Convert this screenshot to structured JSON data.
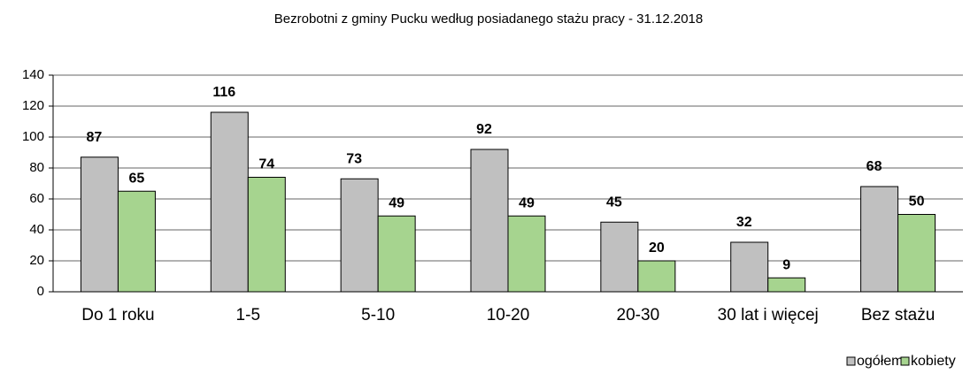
{
  "chart_data": {
    "type": "bar",
    "title": "Bezrobotni z gminy Pucku według  posiadanego  stażu pracy - 31.12.2018",
    "categories": [
      "Do 1 roku",
      "1-5",
      "5-10",
      "10-20",
      "20-30",
      "30 lat i więcej",
      "Bez stażu"
    ],
    "series": [
      {
        "name": "ogółem",
        "color": "#c0c0c0",
        "values": [
          87,
          116,
          73,
          92,
          45,
          32,
          68
        ]
      },
      {
        "name": "kobiety",
        "color": "#a6d48f",
        "values": [
          65,
          74,
          49,
          49,
          20,
          9,
          50
        ]
      }
    ],
    "ylim": [
      0,
      140
    ],
    "yticks": [
      0,
      20,
      40,
      60,
      80,
      100,
      120,
      140
    ],
    "grid": true,
    "legend": "bottom-right"
  }
}
